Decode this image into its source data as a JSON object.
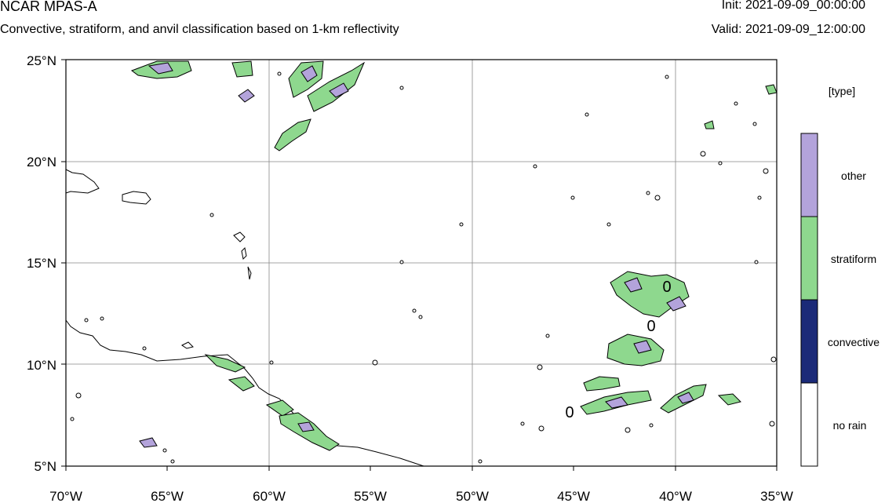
{
  "header": {
    "title": "NCAR MPAS-A",
    "subtitle": "Convective, stratiform, and anvil classification based on 1-km reflectivity",
    "init": "Init: 2021-09-09_00:00:00",
    "valid": "Valid: 2021-09-09_12:00:00"
  },
  "map": {
    "lon_range": [
      -70,
      -35
    ],
    "lat_range": [
      5,
      25
    ],
    "x_ticks": [
      "70°W",
      "65°W",
      "60°W",
      "55°W",
      "50°W",
      "45°W",
      "40°W",
      "35°W"
    ],
    "y_ticks": [
      "5°N",
      "10°N",
      "15°N",
      "20°N",
      "25°N"
    ],
    "grid": true
  },
  "legend": {
    "title": "[type]",
    "categories": [
      {
        "label": "other",
        "color": "#b3a3db"
      },
      {
        "label": "stratiform",
        "color": "#8ed88e"
      },
      {
        "label": "convective",
        "color": "#1b2a78"
      },
      {
        "label": "no rain",
        "color": "#ffffff"
      }
    ]
  },
  "contour_labels": [
    "0",
    "0",
    "0"
  ]
}
